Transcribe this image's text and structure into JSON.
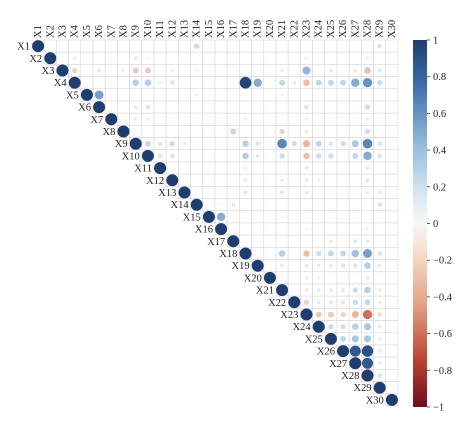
{
  "chart_data": {
    "type": "heatmap",
    "variables": [
      "X1",
      "X2",
      "X3",
      "X4",
      "X5",
      "X6",
      "X7",
      "X8",
      "X9",
      "X10",
      "X11",
      "X12",
      "X13",
      "X14",
      "X15",
      "X16",
      "X17",
      "X18",
      "X19",
      "X20",
      "X21",
      "X22",
      "X23",
      "X24",
      "X25",
      "X26",
      "X27",
      "X28",
      "X29",
      "X30"
    ],
    "layout": "upper-triangle",
    "title": "",
    "xlabel": "",
    "ylabel": "",
    "colorbar": {
      "ticks": [
        1,
        0.8,
        0.6,
        0.4,
        0.2,
        0,
        -0.2,
        -0.4,
        -0.6,
        -0.8,
        -1
      ],
      "tick_labels": [
        "1",
        "0.8",
        "0.6",
        "0.4",
        "0.2",
        "0",
        "−0.2",
        "−0.4",
        "−0.6",
        "−0.8",
        "−1"
      ],
      "range": [
        -1,
        1
      ],
      "colors": {
        "high": "#1f3d6e",
        "mid": "#f7f7f7",
        "low": "#6d0f1e"
      }
    },
    "grid": true,
    "diagonal_value": 1,
    "correlations": [
      [
        "X1",
        "X14",
        -0.2
      ],
      [
        "X1",
        "X29",
        0.15
      ],
      [
        "X2",
        "X4",
        -0.08
      ],
      [
        "X2",
        "X9",
        0.1
      ],
      [
        "X2",
        "X10",
        -0.05
      ],
      [
        "X2",
        "X23",
        -0.06
      ],
      [
        "X2",
        "X28",
        -0.08
      ],
      [
        "X3",
        "X4",
        -0.2
      ],
      [
        "X3",
        "X6",
        -0.1
      ],
      [
        "X3",
        "X8",
        -0.08
      ],
      [
        "X3",
        "X9",
        -0.25
      ],
      [
        "X3",
        "X10",
        -0.25
      ],
      [
        "X3",
        "X12",
        0.08
      ],
      [
        "X3",
        "X14",
        -0.05
      ],
      [
        "X3",
        "X21",
        -0.08
      ],
      [
        "X3",
        "X23",
        0.45
      ],
      [
        "X3",
        "X25",
        -0.1
      ],
      [
        "X3",
        "X27",
        -0.1
      ],
      [
        "X3",
        "X28",
        -0.3
      ],
      [
        "X3",
        "X29",
        0.12
      ],
      [
        "X4",
        "X9",
        0.3
      ],
      [
        "X4",
        "X10",
        0.3
      ],
      [
        "X4",
        "X11",
        0.08
      ],
      [
        "X4",
        "X12",
        0.15
      ],
      [
        "X4",
        "X18",
        0.95
      ],
      [
        "X4",
        "X19",
        0.5
      ],
      [
        "X4",
        "X21",
        0.25
      ],
      [
        "X4",
        "X22",
        0.1
      ],
      [
        "X4",
        "X23",
        -0.3
      ],
      [
        "X4",
        "X24",
        0.25
      ],
      [
        "X4",
        "X25",
        0.25
      ],
      [
        "X4",
        "X26",
        0.25
      ],
      [
        "X4",
        "X27",
        0.5
      ],
      [
        "X4",
        "X28",
        0.6
      ],
      [
        "X4",
        "X29",
        0.2
      ],
      [
        "X5",
        "X6",
        0.55
      ],
      [
        "X5",
        "X14",
        0.05
      ],
      [
        "X5",
        "X21",
        0.05
      ],
      [
        "X6",
        "X9",
        0.1
      ],
      [
        "X6",
        "X10",
        -0.15
      ],
      [
        "X6",
        "X23",
        -0.15
      ],
      [
        "X6",
        "X28",
        -0.2
      ],
      [
        "X7",
        "X9",
        0.08
      ],
      [
        "X7",
        "X10",
        0.08
      ],
      [
        "X7",
        "X18",
        0.08
      ],
      [
        "X7",
        "X23",
        0.08
      ],
      [
        "X7",
        "X28",
        0.1
      ],
      [
        "X8",
        "X17",
        0.25
      ],
      [
        "X8",
        "X21",
        -0.2
      ],
      [
        "X8",
        "X23",
        -0.1
      ],
      [
        "X8",
        "X28",
        0.2
      ],
      [
        "X9",
        "X10",
        0.25
      ],
      [
        "X9",
        "X11",
        0.15
      ],
      [
        "X9",
        "X12",
        0.2
      ],
      [
        "X9",
        "X13",
        0.08
      ],
      [
        "X9",
        "X18",
        0.3
      ],
      [
        "X9",
        "X19",
        0.15
      ],
      [
        "X9",
        "X21",
        0.65
      ],
      [
        "X9",
        "X22",
        0.2
      ],
      [
        "X9",
        "X23",
        -0.35
      ],
      [
        "X9",
        "X24",
        0.25
      ],
      [
        "X9",
        "X25",
        0.15
      ],
      [
        "X9",
        "X26",
        0.2
      ],
      [
        "X9",
        "X27",
        0.35
      ],
      [
        "X9",
        "X28",
        0.65
      ],
      [
        "X9",
        "X29",
        0.15
      ],
      [
        "X10",
        "X11",
        0.15
      ],
      [
        "X10",
        "X12",
        0.15
      ],
      [
        "X10",
        "X18",
        0.3
      ],
      [
        "X10",
        "X19",
        0.1
      ],
      [
        "X10",
        "X21",
        0.2
      ],
      [
        "X10",
        "X23",
        -0.3
      ],
      [
        "X10",
        "X24",
        0.2
      ],
      [
        "X10",
        "X25",
        0.2
      ],
      [
        "X10",
        "X27",
        0.25
      ],
      [
        "X10",
        "X28",
        0.5
      ],
      [
        "X10",
        "X29",
        0.15
      ],
      [
        "X11",
        "X18",
        0.08
      ],
      [
        "X11",
        "X23",
        -0.1
      ],
      [
        "X11",
        "X28",
        0.1
      ],
      [
        "X12",
        "X18",
        0.1
      ],
      [
        "X12",
        "X21",
        0.08
      ],
      [
        "X12",
        "X23",
        -0.1
      ],
      [
        "X12",
        "X24",
        0.05
      ],
      [
        "X12",
        "X28",
        0.12
      ],
      [
        "X13",
        "X18",
        0.12
      ],
      [
        "X13",
        "X21",
        0.12
      ],
      [
        "X13",
        "X23",
        -0.1
      ],
      [
        "X13",
        "X28",
        0.1
      ],
      [
        "X13",
        "X29",
        0.1
      ],
      [
        "X14",
        "X16",
        0.05
      ],
      [
        "X14",
        "X17",
        0.12
      ],
      [
        "X14",
        "X29",
        -0.15
      ],
      [
        "X15",
        "X16",
        0.5
      ],
      [
        "X15",
        "X21",
        0.05
      ],
      [
        "X16",
        "X23",
        -0.05
      ],
      [
        "X16",
        "X28",
        0.05
      ],
      [
        "X17",
        "X25",
        0.1
      ],
      [
        "X17",
        "X27",
        0.12
      ],
      [
        "X17",
        "X28",
        0.1
      ],
      [
        "X18",
        "X21",
        0.3
      ],
      [
        "X18",
        "X23",
        -0.3
      ],
      [
        "X18",
        "X24",
        0.2
      ],
      [
        "X18",
        "X25",
        0.25
      ],
      [
        "X18",
        "X26",
        0.25
      ],
      [
        "X18",
        "X27",
        0.4
      ],
      [
        "X18",
        "X28",
        0.55
      ],
      [
        "X18",
        "X29",
        0.15
      ],
      [
        "X19",
        "X21",
        0.1
      ],
      [
        "X19",
        "X23",
        -0.1
      ],
      [
        "X19",
        "X24",
        0.1
      ],
      [
        "X19",
        "X25",
        0.1
      ],
      [
        "X19",
        "X26",
        0.15
      ],
      [
        "X19",
        "X27",
        0.15
      ],
      [
        "X19",
        "X28",
        0.3
      ],
      [
        "X19",
        "X29",
        0.1
      ],
      [
        "X20",
        "X23",
        -0.08
      ],
      [
        "X20",
        "X24",
        0.05
      ],
      [
        "X20",
        "X28",
        0.1
      ],
      [
        "X21",
        "X23",
        -0.1
      ],
      [
        "X21",
        "X24",
        0.1
      ],
      [
        "X21",
        "X25",
        0.1
      ],
      [
        "X21",
        "X26",
        0.12
      ],
      [
        "X21",
        "X27",
        0.2
      ],
      [
        "X21",
        "X28",
        0.3
      ],
      [
        "X21",
        "X29",
        0.08
      ],
      [
        "X22",
        "X23",
        -0.2
      ],
      [
        "X22",
        "X24",
        0.1
      ],
      [
        "X22",
        "X25",
        0.12
      ],
      [
        "X22",
        "X26",
        0.12
      ],
      [
        "X22",
        "X27",
        0.2
      ],
      [
        "X22",
        "X28",
        0.25
      ],
      [
        "X22",
        "X29",
        0.1
      ],
      [
        "X23",
        "X24",
        -0.25
      ],
      [
        "X23",
        "X25",
        -0.25
      ],
      [
        "X23",
        "X26",
        -0.2
      ],
      [
        "X23",
        "X27",
        -0.35
      ],
      [
        "X23",
        "X28",
        -0.6
      ],
      [
        "X23",
        "X29",
        -0.15
      ],
      [
        "X24",
        "X25",
        0.2
      ],
      [
        "X24",
        "X26",
        0.2
      ],
      [
        "X24",
        "X27",
        0.3
      ],
      [
        "X24",
        "X28",
        0.35
      ],
      [
        "X24",
        "X29",
        0.1
      ],
      [
        "X25",
        "X26",
        0.25
      ],
      [
        "X25",
        "X27",
        0.35
      ],
      [
        "X25",
        "X28",
        0.35
      ],
      [
        "X25",
        "X29",
        0.1
      ],
      [
        "X26",
        "X27",
        0.85
      ],
      [
        "X26",
        "X28",
        0.9
      ],
      [
        "X26",
        "X29",
        0.1
      ],
      [
        "X27",
        "X28",
        0.85
      ],
      [
        "X27",
        "X29",
        0.1
      ],
      [
        "X28",
        "X29",
        0.15
      ]
    ]
  }
}
